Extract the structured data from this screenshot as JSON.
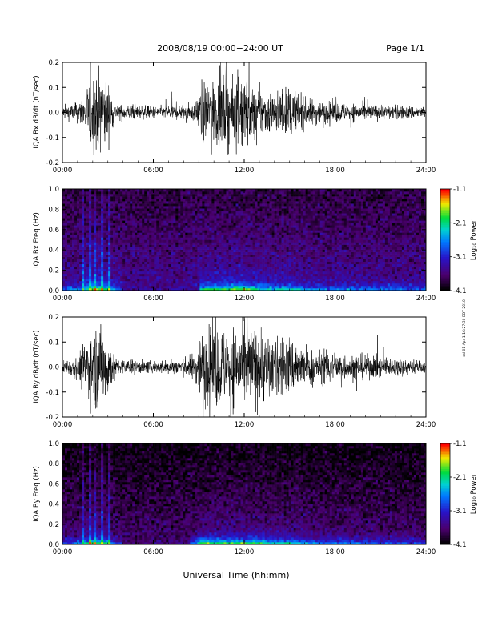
{
  "header": {
    "title": "2008/08/19  00:00−24:00 UT",
    "page": "Page 1/1"
  },
  "side_note": "ssl 01 Apr 1 16:27:30 EDT 2010",
  "chart_data": [
    {
      "type": "line",
      "name": "IQA Bx dB/dt",
      "ylabel": "IQA Bx dB/dt (nT/sec)",
      "xlim": [
        "00:00",
        "24:00"
      ],
      "ylim": [
        -0.2,
        0.2
      ],
      "x_ticks": [
        "00:00",
        "06:00",
        "12:00",
        "18:00",
        "24:00"
      ],
      "y_ticks": [
        "-0.2",
        "-0.1",
        "0.0",
        "0.1",
        "0.2"
      ],
      "grid": false,
      "activity_envelope": [
        {
          "time": "00:00",
          "amplitude": 0.03
        },
        {
          "time": "01:00",
          "amplitude": 0.05
        },
        {
          "time": "01:30",
          "amplitude": 0.11
        },
        {
          "time": "02:00",
          "amplitude": 0.2
        },
        {
          "time": "02:30",
          "amplitude": 0.2
        },
        {
          "time": "03:00",
          "amplitude": 0.15
        },
        {
          "time": "03:30",
          "amplitude": 0.04
        },
        {
          "time": "06:00",
          "amplitude": 0.03
        },
        {
          "time": "08:00",
          "amplitude": 0.04
        },
        {
          "time": "08:50",
          "amplitude": 0.05
        },
        {
          "time": "09:10",
          "amplitude": 0.16
        },
        {
          "time": "10:00",
          "amplitude": 0.16
        },
        {
          "time": "11:00",
          "amplitude": 0.18
        },
        {
          "time": "12:00",
          "amplitude": 0.2
        },
        {
          "time": "13:00",
          "amplitude": 0.12
        },
        {
          "time": "14:00",
          "amplitude": 0.1
        },
        {
          "time": "15:00",
          "amplitude": 0.13
        },
        {
          "time": "16:00",
          "amplitude": 0.07
        },
        {
          "time": "18:00",
          "amplitude": 0.05
        },
        {
          "time": "20:00",
          "amplitude": 0.04
        },
        {
          "time": "24:00",
          "amplitude": 0.03
        }
      ]
    },
    {
      "type": "heatmap",
      "name": "IQA Bx Freq",
      "ylabel": "IQA Bx Freq (Hz)",
      "colorbar_label": "Log₁₀ Power",
      "colorbar_ticks": [
        "-1.1",
        "-2.1",
        "-3.1",
        "-4.1"
      ],
      "clim": [
        -4.1,
        -1.1
      ],
      "xlim": [
        "00:00",
        "24:00"
      ],
      "ylim": [
        0.0,
        1.0
      ],
      "x_ticks": [
        "00:00",
        "06:00",
        "12:00",
        "18:00",
        "24:00"
      ],
      "y_ticks": [
        "0.0",
        "0.2",
        "0.4",
        "0.6",
        "0.8",
        "1.0"
      ],
      "colormap": "rainbow",
      "background_power_log10": -3.5,
      "low_frequency_enhancement_time_ranges": [
        [
          "00:00",
          "04:00"
        ],
        [
          "09:00",
          "24:00"
        ]
      ],
      "vertical_streak_times": [
        "01:20",
        "01:50",
        "02:10",
        "02:40",
        "03:05"
      ]
    },
    {
      "type": "line",
      "name": "IQA By dB/dt",
      "ylabel": "IQA By dB/dt (nT/sec)",
      "xlim": [
        "00:00",
        "24:00"
      ],
      "ylim": [
        -0.2,
        0.2
      ],
      "x_ticks": [
        "00:00",
        "06:00",
        "12:00",
        "18:00",
        "24:00"
      ],
      "y_ticks": [
        "-0.2",
        "-0.1",
        "0.0",
        "0.1",
        "0.2"
      ],
      "grid": false,
      "activity_envelope": [
        {
          "time": "00:00",
          "amplitude": 0.03
        },
        {
          "time": "01:00",
          "amplitude": 0.06
        },
        {
          "time": "01:30",
          "amplitude": 0.14
        },
        {
          "time": "02:00",
          "amplitude": 0.2
        },
        {
          "time": "02:30",
          "amplitude": 0.2
        },
        {
          "time": "03:00",
          "amplitude": 0.16
        },
        {
          "time": "03:30",
          "amplitude": 0.04
        },
        {
          "time": "06:00",
          "amplitude": 0.03
        },
        {
          "time": "08:00",
          "amplitude": 0.04
        },
        {
          "time": "08:50",
          "amplitude": 0.08
        },
        {
          "time": "09:10",
          "amplitude": 0.2
        },
        {
          "time": "10:00",
          "amplitude": 0.2
        },
        {
          "time": "11:00",
          "amplitude": 0.2
        },
        {
          "time": "12:00",
          "amplitude": 0.2
        },
        {
          "time": "13:00",
          "amplitude": 0.2
        },
        {
          "time": "14:00",
          "amplitude": 0.14
        },
        {
          "time": "15:00",
          "amplitude": 0.16
        },
        {
          "time": "16:00",
          "amplitude": 0.1
        },
        {
          "time": "17:00",
          "amplitude": 0.08
        },
        {
          "time": "18:00",
          "amplitude": 0.08
        },
        {
          "time": "20:00",
          "amplitude": 0.06
        },
        {
          "time": "24:00",
          "amplitude": 0.03
        }
      ]
    },
    {
      "type": "heatmap",
      "name": "IQA By Freq",
      "ylabel": "IQA By Freq (Hz)",
      "colorbar_label": "Log₁₀ Power",
      "colorbar_ticks": [
        "-1.1",
        "-2.1",
        "-3.1",
        "-4.1"
      ],
      "clim": [
        -4.1,
        -1.1
      ],
      "xlim": [
        "00:00",
        "24:00"
      ],
      "ylim": [
        0.0,
        1.0
      ],
      "x_ticks": [
        "00:00",
        "06:00",
        "12:00",
        "18:00",
        "24:00"
      ],
      "y_ticks": [
        "0.0",
        "0.2",
        "0.4",
        "0.6",
        "0.8",
        "1.0"
      ],
      "colormap": "rainbow",
      "background_power_log10": -3.7,
      "low_frequency_enhancement_time_ranges": [
        [
          "00:00",
          "04:00"
        ],
        [
          "08:30",
          "24:00"
        ]
      ],
      "vertical_streak_times": [
        "01:20",
        "01:50",
        "02:10",
        "02:40",
        "03:05"
      ]
    }
  ],
  "xaxis_title": "Universal Time (hh:mm)"
}
